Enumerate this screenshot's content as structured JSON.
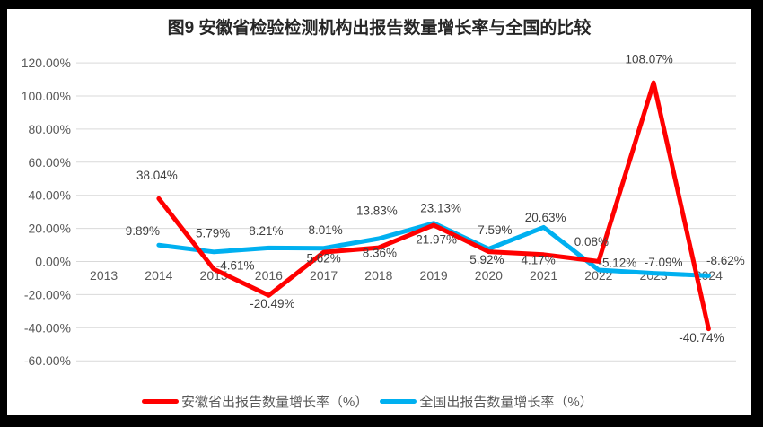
{
  "frame": {
    "border_color": "#000000",
    "background": "#ffffff"
  },
  "palette": {
    "gridline": "#d9d9d9",
    "axis_text": "#595959",
    "data_label_text": "#404040",
    "title_text": "#262626",
    "legend_text": "#595959",
    "series_red": "#ff0000",
    "series_blue": "#00b0f0"
  },
  "chart_data": {
    "type": "line",
    "title": "图9 安徽省检验检测机构出报告数量增长率与全国的比较",
    "xlabel": "",
    "ylabel": "",
    "categories": [
      "2013",
      "2014",
      "2015",
      "2016",
      "2017",
      "2018",
      "2019",
      "2020",
      "2021",
      "2022",
      "2023",
      "2024"
    ],
    "series": [
      {
        "name": "安徽省出报告数量增长率（%）",
        "color": "#ff0000",
        "values": [
          null,
          38.04,
          -4.61,
          -20.49,
          5.62,
          8.36,
          21.97,
          5.92,
          4.17,
          0.08,
          108.07,
          -40.74
        ],
        "label_offsets": [
          null,
          [
            -2,
            -26
          ],
          [
            24,
            -4
          ],
          [
            4,
            9
          ],
          [
            0,
            7
          ],
          [
            1,
            6
          ],
          [
            3,
            16
          ],
          [
            -2,
            9
          ],
          [
            -6,
            6
          ],
          [
            -8,
            -22
          ],
          [
            -5,
            -26
          ],
          [
            -8,
            10
          ]
        ]
      },
      {
        "name": "全国出报告数量增长率（%）",
        "color": "#00b0f0",
        "values": [
          null,
          9.89,
          5.79,
          8.21,
          8.01,
          13.83,
          23.13,
          7.59,
          20.63,
          -5.12,
          -7.09,
          -8.62
        ],
        "label_offsets": [
          null,
          [
            -18,
            -16
          ],
          [
            -1,
            -21
          ],
          [
            -3,
            -19
          ],
          [
            2,
            -20
          ],
          [
            -2,
            -31
          ],
          [
            8,
            -17
          ],
          [
            7,
            -21
          ],
          [
            2,
            -11
          ],
          [
            21,
            -8
          ],
          [
            11,
            -12
          ],
          [
            19,
            -17
          ]
        ]
      }
    ],
    "y_ticks": [
      120,
      100,
      80,
      60,
      40,
      20,
      0,
      -20,
      -40,
      -60
    ],
    "ylim": [
      -60,
      120
    ],
    "value_format": "0.00%",
    "grid": true,
    "vertical_grid": false,
    "markers": false,
    "legend_position": "bottom"
  }
}
